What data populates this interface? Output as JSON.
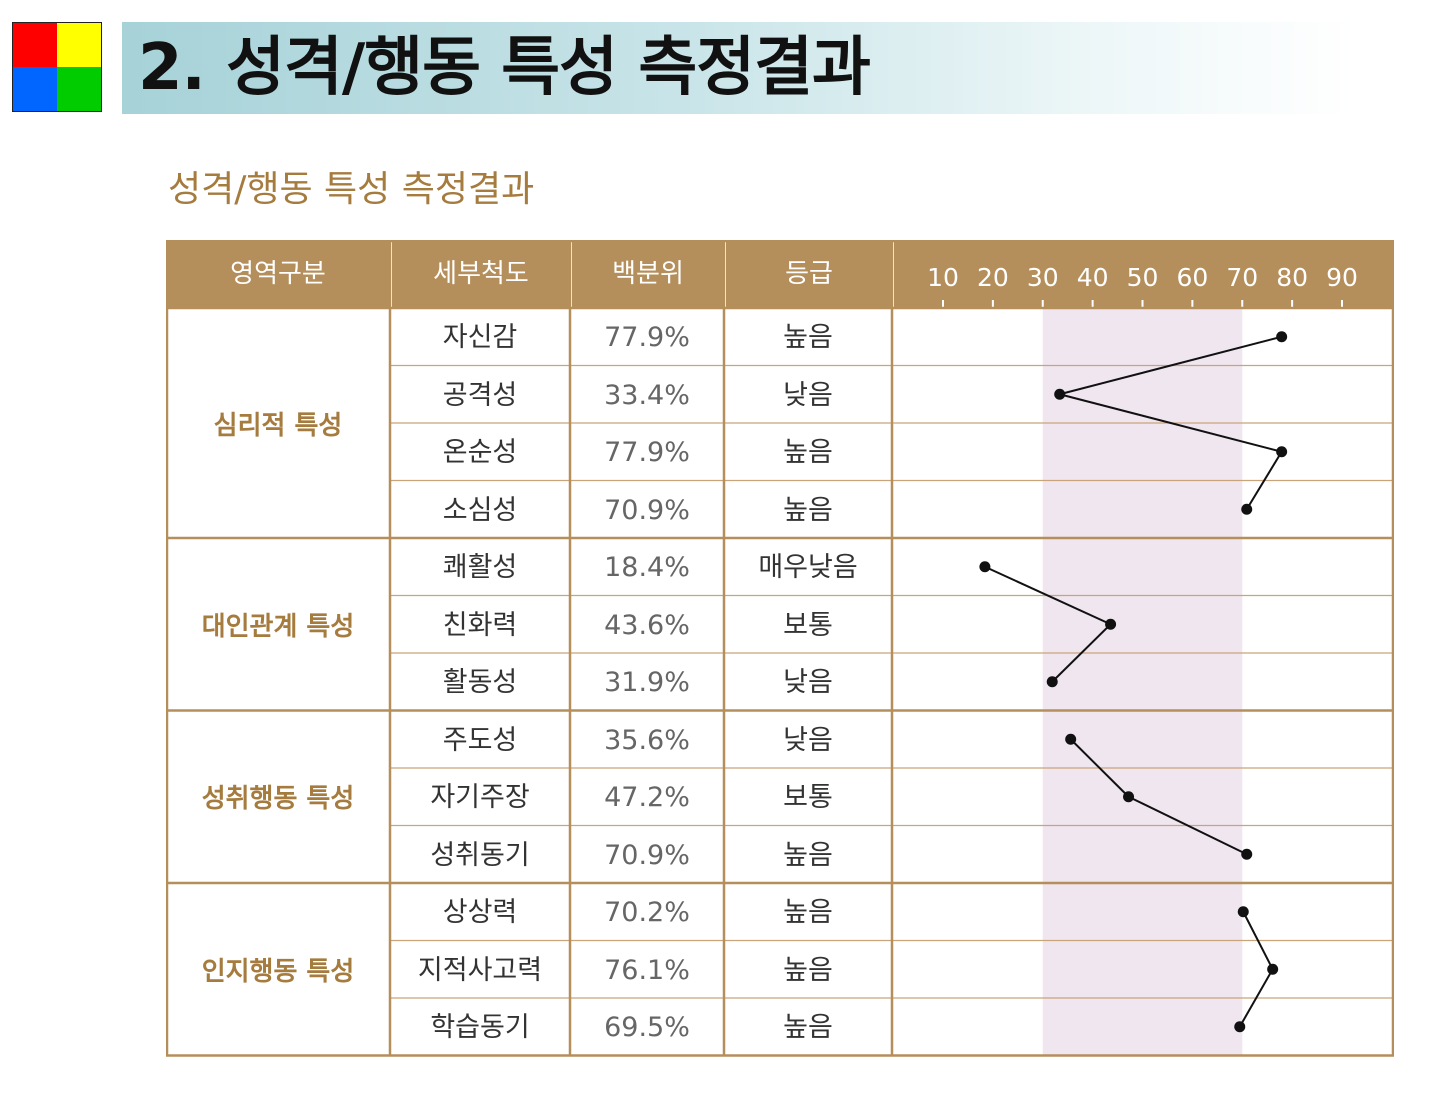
{
  "logo": {
    "colors": [
      "#ff0000",
      "#ffff00",
      "#0066ff",
      "#00cc00"
    ]
  },
  "page_title": "2. 성격/행동 특성 측정결과",
  "section_title": "성격/행동 특성 측정결과",
  "table": {
    "headers": {
      "area": "영역구분",
      "scale": "세부척도",
      "percentile": "백분위",
      "grade": "등급"
    },
    "axis_ticks": [
      "10",
      "20",
      "30",
      "40",
      "50",
      "60",
      "70",
      "80",
      "90"
    ],
    "groups": [
      {
        "name": "심리적 특성",
        "rows": [
          {
            "scale": "자신감",
            "percentile": "77.9%",
            "grade": "높음"
          },
          {
            "scale": "공격성",
            "percentile": "33.4%",
            "grade": "낮음"
          },
          {
            "scale": "온순성",
            "percentile": "77.9%",
            "grade": "높음"
          },
          {
            "scale": "소심성",
            "percentile": "70.9%",
            "grade": "높음"
          }
        ]
      },
      {
        "name": "대인관계 특성",
        "rows": [
          {
            "scale": "쾌활성",
            "percentile": "18.4%",
            "grade": "매우낮음"
          },
          {
            "scale": "친화력",
            "percentile": "43.6%",
            "grade": "보통"
          },
          {
            "scale": "활동성",
            "percentile": "31.9%",
            "grade": "낮음"
          }
        ]
      },
      {
        "name": "성취행동 특성",
        "rows": [
          {
            "scale": "주도성",
            "percentile": "35.6%",
            "grade": "낮음"
          },
          {
            "scale": "자기주장",
            "percentile": "47.2%",
            "grade": "보통"
          },
          {
            "scale": "성취동기",
            "percentile": "70.9%",
            "grade": "높음"
          }
        ]
      },
      {
        "name": "인지행동 특성",
        "rows": [
          {
            "scale": "상상력",
            "percentile": "70.2%",
            "grade": "높음"
          },
          {
            "scale": "지적사고력",
            "percentile": "76.1%",
            "grade": "높음"
          },
          {
            "scale": "학습동기",
            "percentile": "69.5%",
            "grade": "높음"
          }
        ]
      }
    ]
  },
  "chart_data": {
    "type": "line",
    "x_range": [
      0,
      100
    ],
    "xticks": [
      10,
      20,
      30,
      40,
      50,
      60,
      70,
      80,
      90
    ],
    "highlight_band": [
      30,
      70
    ],
    "values": [
      77.9,
      33.4,
      77.9,
      70.9,
      18.4,
      43.6,
      31.9,
      35.6,
      47.2,
      70.9,
      70.2,
      76.1,
      69.5
    ],
    "line_segments": [
      [
        0,
        3
      ],
      [
        4,
        6
      ],
      [
        7,
        9
      ],
      [
        10,
        12
      ]
    ],
    "colors": {
      "band": "#efe6f0",
      "line": "#111111",
      "grid": "#c9a47a",
      "border": "#b58f5b"
    }
  }
}
